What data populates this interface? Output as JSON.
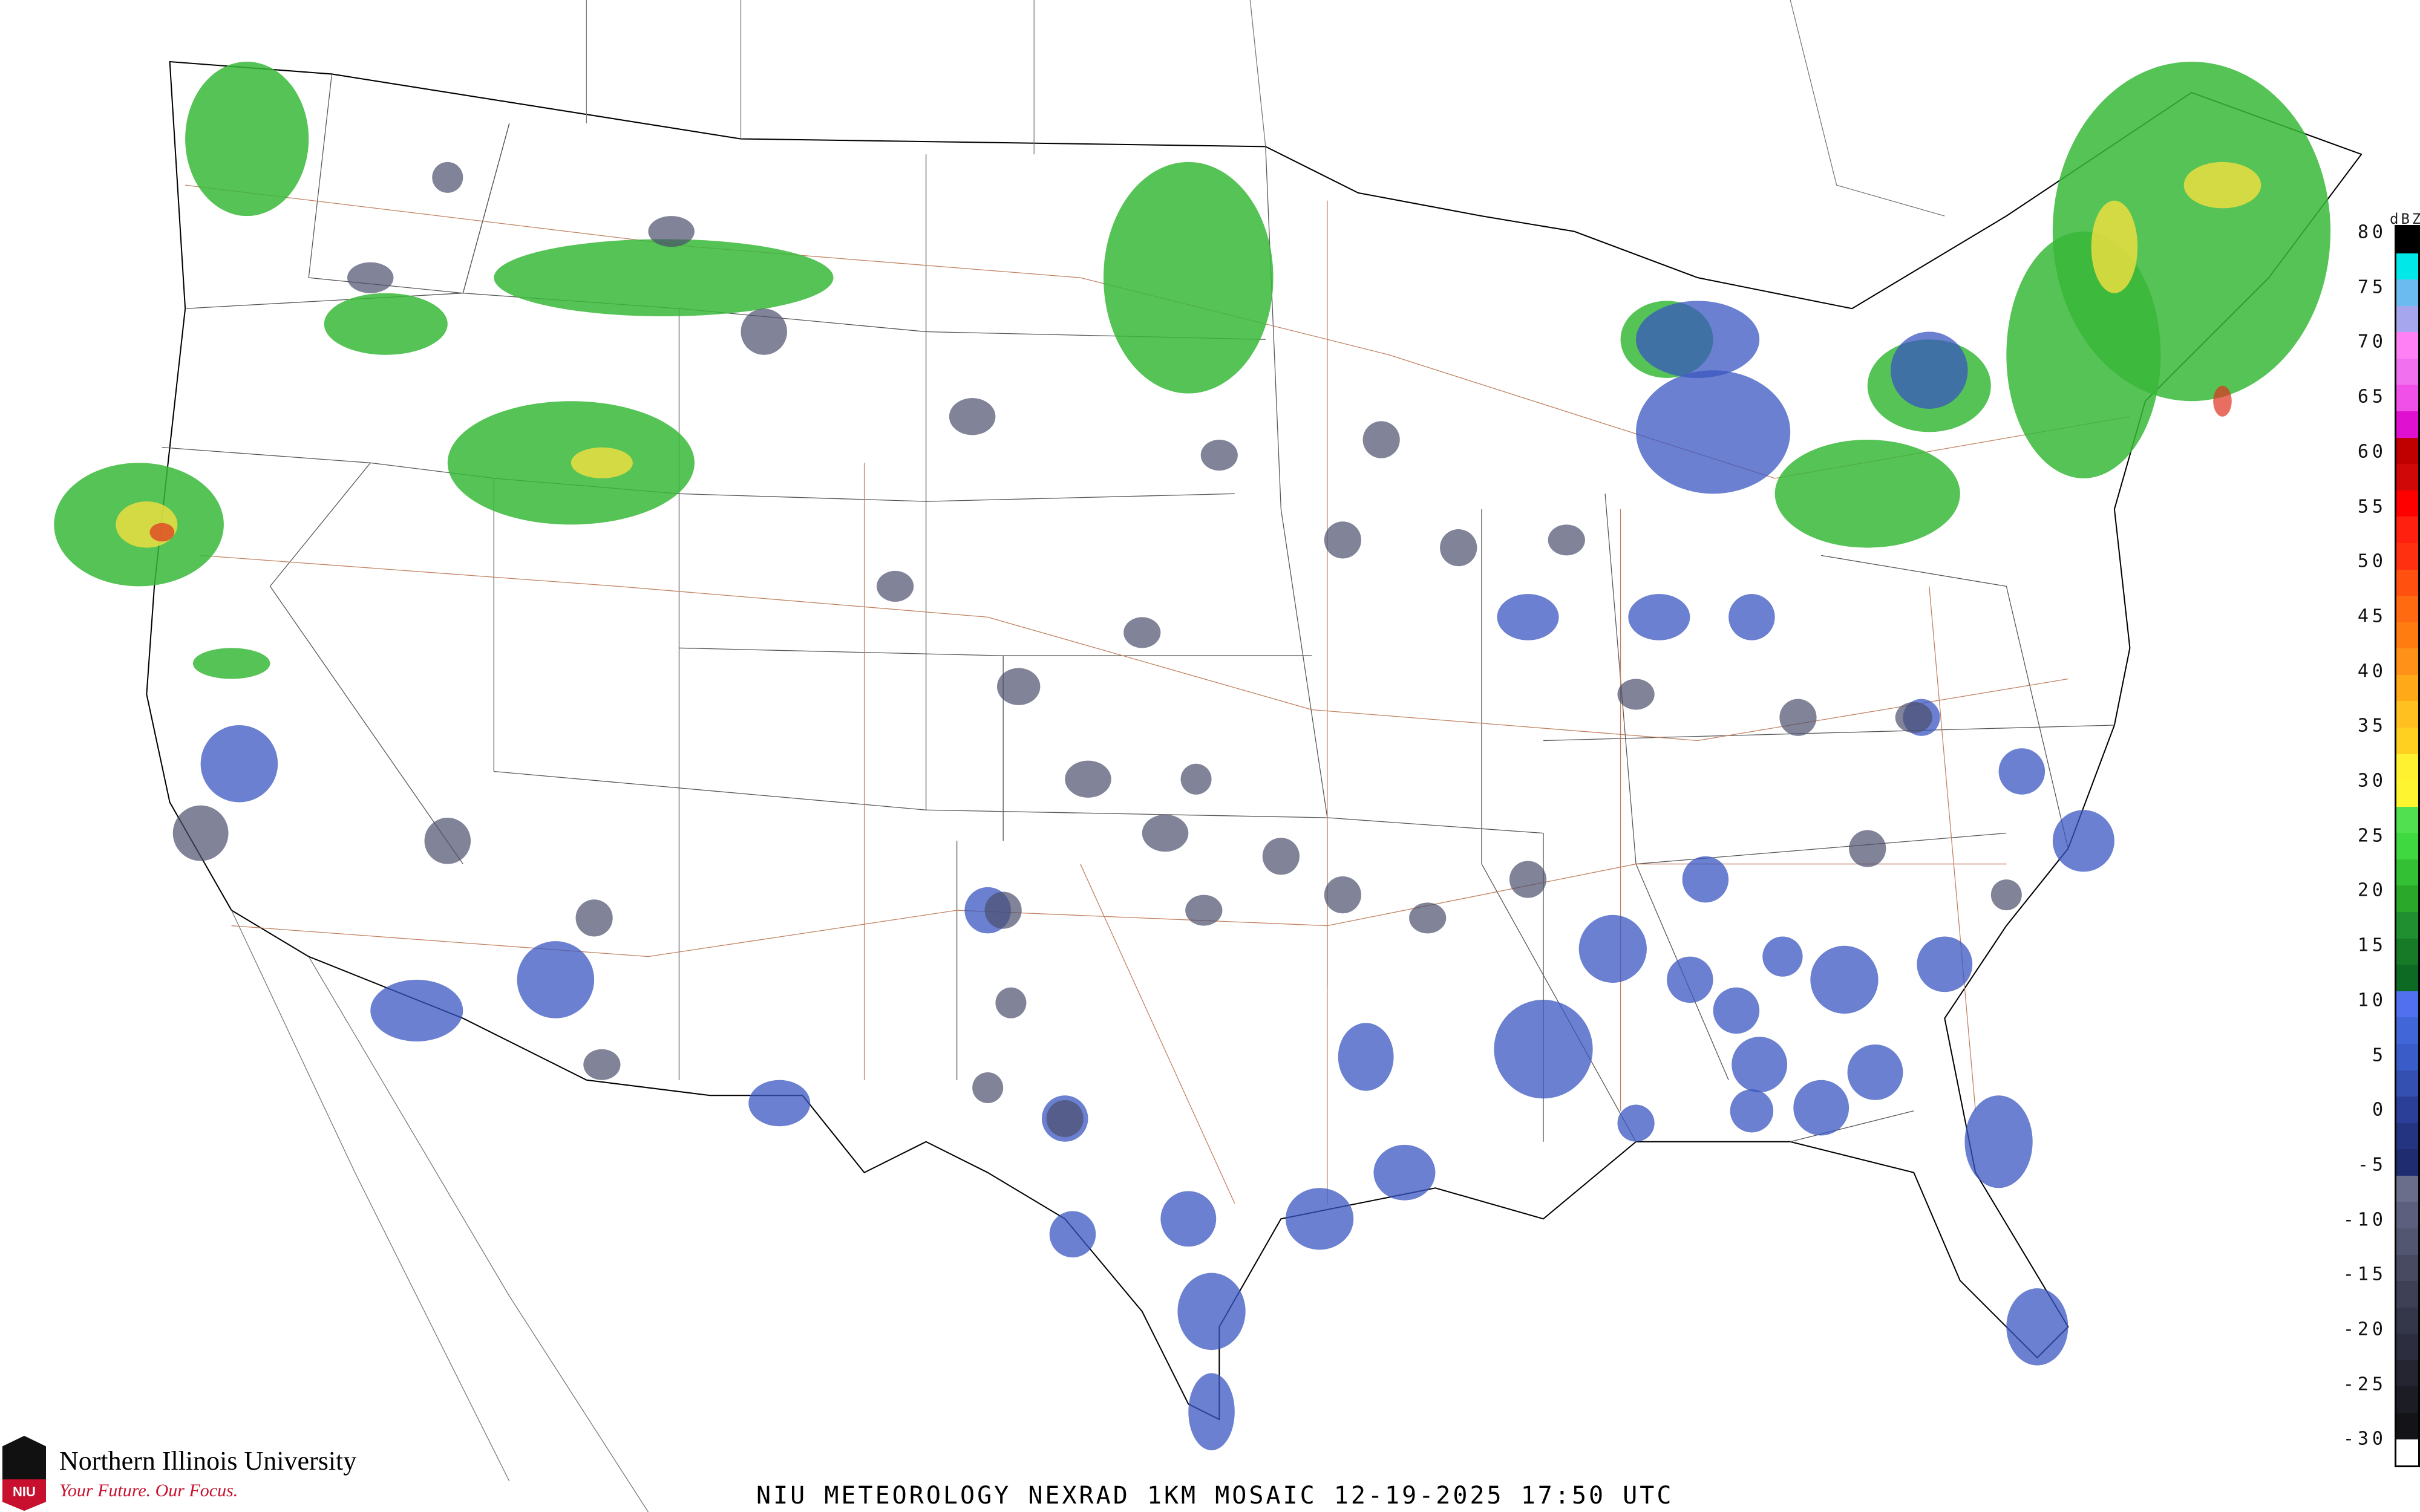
{
  "title": "NIU METEOROLOGY NEXRAD 1KM MOSAIC  12-19-2025 17:50 UTC",
  "logo": {
    "name": "Northern Illinois University",
    "tagline": "Your Future. Our Focus.",
    "mark": "NIU",
    "colors": {
      "black": "#111111",
      "red": "#c8102e"
    }
  },
  "legend": {
    "unit": "dBZ",
    "labels": [
      "80",
      "75",
      "70",
      "65",
      "60",
      "55",
      "50",
      "45",
      "40",
      "35",
      "30",
      "25",
      "20",
      "15",
      "10",
      "5",
      "0",
      "-5",
      "-10",
      "-15",
      "-20",
      "-25",
      "-30"
    ],
    "colors": [
      "#000000",
      "#00e8e8",
      "#6bbaf0",
      "#a6a6ee",
      "#ff80f4",
      "#f070f0",
      "#f050e8",
      "#e010d0",
      "#c00000",
      "#d00808",
      "#ff0000",
      "#ff2010",
      "#ff3010",
      "#ff5010",
      "#ff6a10",
      "#ff7c10",
      "#ff9018",
      "#ffa818",
      "#ffc020",
      "#ffd020",
      "#fff030",
      "#fff430",
      "#50e050",
      "#40d840",
      "#34c034",
      "#2aa82a",
      "#1f8f2f",
      "#177a26",
      "#0c6a22",
      "#5070f0",
      "#4066d8",
      "#3a5cc8",
      "#3450b0",
      "#2c3f98",
      "#253480",
      "#202c70",
      "#6a6e8a",
      "#5c607e",
      "#525670",
      "#484a62",
      "#3e4056",
      "#34364a",
      "#2c2d3e",
      "#242530",
      "#1c1c24",
      "#141418",
      "#ffffff"
    ]
  },
  "map": {
    "colors": {
      "coast": "#000000",
      "states": "#555555",
      "counties": "#cfcfcf",
      "highways": "#c08060",
      "green": "#38b838",
      "blue": "#3a56c0",
      "gray": "#4c4f6c",
      "yellow": "#f4e040",
      "red": "#e03020"
    }
  }
}
